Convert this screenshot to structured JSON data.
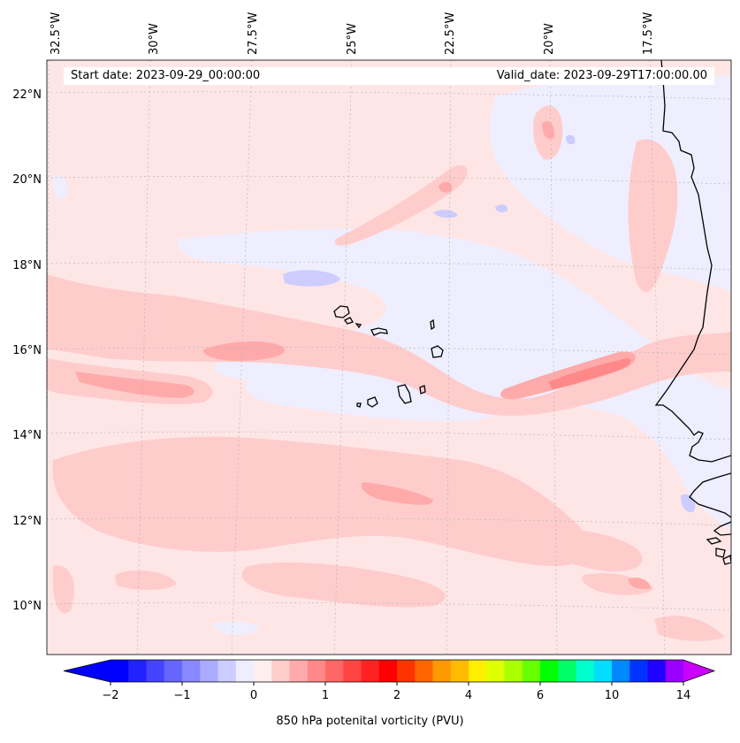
{
  "map": {
    "start_date_text": "Start date: 2023-09-29_00:00:00",
    "valid_date_text": "Valid_date: 2023-09-29T17:00:00.00",
    "lon_labels": [
      "32.5°W",
      "30°W",
      "27.5°W",
      "25°W",
      "22.5°W",
      "20°W",
      "17.5°W"
    ],
    "lat_labels": [
      "22°N",
      "20°N",
      "18°N",
      "16°N",
      "14°N",
      "12°N",
      "10°N"
    ],
    "field_colors": {
      "background": "#ffe6e6",
      "light_blue": "#eeeeff",
      "mid_blue": "#ccccff",
      "light_pink": "#ffcccc",
      "mid_pink": "#ffaaaa",
      "strong_pink": "#ff8888",
      "coast": "#000000"
    }
  },
  "colorbar": {
    "label": "850 hPa potenital vorticity (PVU)",
    "tick_labels": [
      "−2",
      "−1",
      "0",
      "1",
      "2",
      "4",
      "6",
      "10",
      "14"
    ],
    "colors": [
      "#0000ff",
      "#2222ff",
      "#4444ff",
      "#6666ff",
      "#8888ff",
      "#aaaaff",
      "#ccccff",
      "#eeeeff",
      "#ffeeee",
      "#ffcccc",
      "#ffaaaa",
      "#ff8888",
      "#ff6666",
      "#ff4444",
      "#ff2222",
      "#ff0000",
      "#ff3300",
      "#ff6600",
      "#ff9900",
      "#ffbb00",
      "#ffee00",
      "#ddff00",
      "#aaff00",
      "#66ff00",
      "#00ff00",
      "#00ff66",
      "#00ffcc",
      "#00ddff",
      "#0088ff",
      "#0033ff",
      "#2200ff",
      "#9900ff"
    ],
    "under_color": "#0000ff",
    "over_color": "#cc00ff"
  }
}
